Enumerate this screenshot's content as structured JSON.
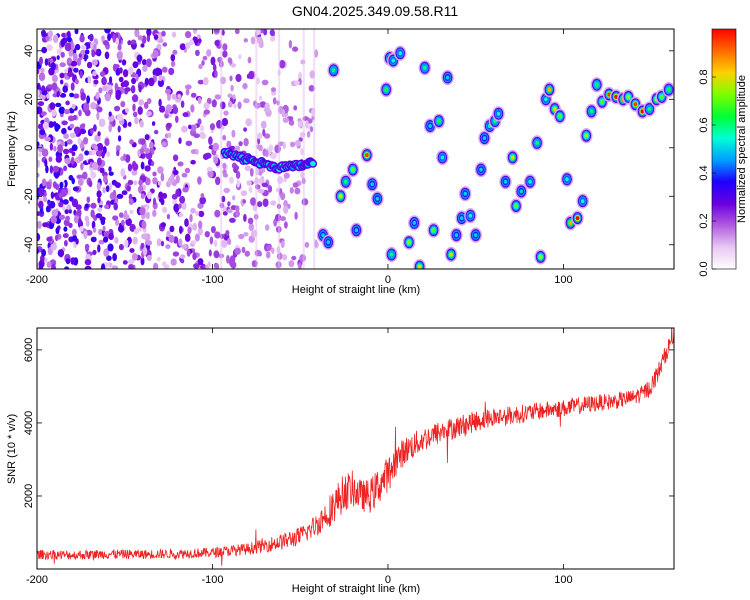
{
  "title": "GN04.2025.349.09.58.R11",
  "chart_data": [
    {
      "type": "heatmap",
      "xlabel": "Height of straight line (km)",
      "ylabel": "Frequency (Hz)",
      "xlim": [
        -200,
        163
      ],
      "ylim": [
        -50,
        49
      ],
      "xticks": [
        -200,
        -100,
        0,
        100
      ],
      "yticks": [
        -40,
        -20,
        0,
        20,
        40
      ],
      "colorbar": {
        "label": "Normalized spectral amplitude",
        "range": [
          0,
          1
        ],
        "ticks": [
          0,
          0.2,
          0.4,
          0.6,
          0.8
        ],
        "colors": [
          "#ffffff",
          "#e9c8f3",
          "#b15be0",
          "#6a00e0",
          "#1d00ff",
          "#00a0ff",
          "#00ffd5",
          "#00ff33",
          "#7dff00",
          "#ffd000",
          "#ff6a00",
          "#ff0000"
        ]
      },
      "noise_region": {
        "x_from": -200,
        "x_to": -40
      },
      "trace": [
        {
          "x": -93,
          "y": -2
        },
        {
          "x": -85,
          "y": -4
        },
        {
          "x": -78,
          "y": -5
        },
        {
          "x": -70,
          "y": -7
        },
        {
          "x": -62,
          "y": -8
        },
        {
          "x": -55,
          "y": -8
        },
        {
          "x": -48,
          "y": -7
        },
        {
          "x": -42,
          "y": -6
        }
      ],
      "features": [
        {
          "x": -31,
          "y": 32,
          "a": 0.6
        },
        {
          "x": -37,
          "y": -36,
          "a": 0.5
        },
        {
          "x": -34,
          "y": -39,
          "a": 0.5
        },
        {
          "x": -27,
          "y": -20,
          "a": 0.8
        },
        {
          "x": -24,
          "y": -14,
          "a": 0.6
        },
        {
          "x": -20,
          "y": -9,
          "a": 0.7
        },
        {
          "x": -18,
          "y": -34,
          "a": 0.5
        },
        {
          "x": -12,
          "y": -3,
          "a": 0.95
        },
        {
          "x": -9,
          "y": -15,
          "a": 0.5
        },
        {
          "x": -6,
          "y": -21,
          "a": 0.5
        },
        {
          "x": -1,
          "y": 24,
          "a": 0.65
        },
        {
          "x": 1,
          "y": 37,
          "a": 0.5
        },
        {
          "x": 3,
          "y": 36,
          "a": 0.55
        },
        {
          "x": 2,
          "y": -44,
          "a": 0.6
        },
        {
          "x": 7,
          "y": 39,
          "a": 0.55
        },
        {
          "x": 12,
          "y": -39,
          "a": 0.75
        },
        {
          "x": 15,
          "y": -31,
          "a": 0.5
        },
        {
          "x": 18,
          "y": -49,
          "a": 0.8
        },
        {
          "x": 21,
          "y": 33,
          "a": 0.6
        },
        {
          "x": 24,
          "y": 9,
          "a": 0.5
        },
        {
          "x": 26,
          "y": -34,
          "a": 0.7
        },
        {
          "x": 29,
          "y": 11,
          "a": 0.65
        },
        {
          "x": 31,
          "y": -4,
          "a": 0.55
        },
        {
          "x": 34,
          "y": 29,
          "a": 0.5
        },
        {
          "x": 36,
          "y": -44,
          "a": 0.8
        },
        {
          "x": 39,
          "y": -36,
          "a": 0.5
        },
        {
          "x": 42,
          "y": -29,
          "a": 0.5
        },
        {
          "x": 44,
          "y": -19,
          "a": 0.5
        },
        {
          "x": 47,
          "y": -28,
          "a": 0.55
        },
        {
          "x": 50,
          "y": -36,
          "a": 0.5
        },
        {
          "x": 53,
          "y": -9,
          "a": 0.5
        },
        {
          "x": 55,
          "y": 4,
          "a": 0.5
        },
        {
          "x": 58,
          "y": 9,
          "a": 0.55
        },
        {
          "x": 61,
          "y": 11,
          "a": 0.6
        },
        {
          "x": 63,
          "y": 14,
          "a": 0.55
        },
        {
          "x": 67,
          "y": -14,
          "a": 0.5
        },
        {
          "x": 71,
          "y": -4,
          "a": 0.8
        },
        {
          "x": 73,
          "y": -24,
          "a": 0.7
        },
        {
          "x": 76,
          "y": -18,
          "a": 0.5
        },
        {
          "x": 81,
          "y": -14,
          "a": 0.55
        },
        {
          "x": 85,
          "y": 2,
          "a": 0.6
        },
        {
          "x": 87,
          "y": -45,
          "a": 0.75
        },
        {
          "x": 90,
          "y": 20,
          "a": 0.55
        },
        {
          "x": 92,
          "y": 24,
          "a": 0.85
        },
        {
          "x": 95,
          "y": 16,
          "a": 0.8
        },
        {
          "x": 98,
          "y": 13,
          "a": 0.7
        },
        {
          "x": 102,
          "y": -13,
          "a": 0.55
        },
        {
          "x": 104,
          "y": -31,
          "a": 0.85
        },
        {
          "x": 108,
          "y": -29,
          "a": 1.0
        },
        {
          "x": 111,
          "y": -22,
          "a": 0.55
        },
        {
          "x": 113,
          "y": 5,
          "a": 0.75
        },
        {
          "x": 116,
          "y": 15,
          "a": 0.6
        },
        {
          "x": 119,
          "y": 26,
          "a": 0.65
        },
        {
          "x": 122,
          "y": 19,
          "a": 0.7
        },
        {
          "x": 126,
          "y": 22,
          "a": 0.95
        },
        {
          "x": 130,
          "y": 21,
          "a": 1.0
        },
        {
          "x": 134,
          "y": 20,
          "a": 0.9
        },
        {
          "x": 137,
          "y": 21,
          "a": 0.75
        },
        {
          "x": 141,
          "y": 18,
          "a": 0.95
        },
        {
          "x": 145,
          "y": 15,
          "a": 1.0
        },
        {
          "x": 149,
          "y": 16,
          "a": 0.6
        },
        {
          "x": 153,
          "y": 20,
          "a": 0.8
        },
        {
          "x": 156,
          "y": 21,
          "a": 0.7
        },
        {
          "x": 160,
          "y": 24,
          "a": 0.65
        }
      ]
    },
    {
      "type": "line",
      "xlabel": "Height of straight line (km)",
      "ylabel": "SNR (10 * v/v)",
      "xlim": [
        -200,
        163
      ],
      "ylim": [
        0,
        6600
      ],
      "xticks": [
        -200,
        -100,
        0,
        100
      ],
      "yticks": [
        2000,
        4000,
        6000
      ],
      "line_color": "#ee2222",
      "series": [
        {
          "name": "SNR",
          "x": [
            -200,
            -180,
            -160,
            -140,
            -120,
            -100,
            -80,
            -60,
            -50,
            -45,
            -40,
            -35,
            -30,
            -25,
            -20,
            -15,
            -10,
            -5,
            0,
            5,
            10,
            15,
            20,
            25,
            30,
            40,
            50,
            60,
            70,
            80,
            90,
            100,
            110,
            120,
            130,
            140,
            145,
            150,
            155,
            160,
            163
          ],
          "y": [
            400,
            380,
            410,
            400,
            420,
            450,
            550,
            750,
            900,
            1050,
            1250,
            1500,
            1800,
            2100,
            2200,
            2000,
            2000,
            2300,
            2600,
            3000,
            3250,
            3400,
            3550,
            3650,
            3750,
            3900,
            4050,
            4150,
            4200,
            4280,
            4350,
            4400,
            4480,
            4550,
            4600,
            4700,
            4800,
            5000,
            5500,
            6100,
            6400
          ],
          "noise": [
            130,
            130,
            130,
            130,
            130,
            140,
            160,
            230,
            260,
            280,
            320,
            420,
            500,
            520,
            500,
            430,
            470,
            520,
            480,
            420,
            380,
            360,
            340,
            330,
            320,
            300,
            290,
            270,
            260,
            250,
            240,
            240,
            240,
            230,
            220,
            220,
            230,
            250,
            260,
            240,
            200
          ]
        }
      ]
    }
  ]
}
